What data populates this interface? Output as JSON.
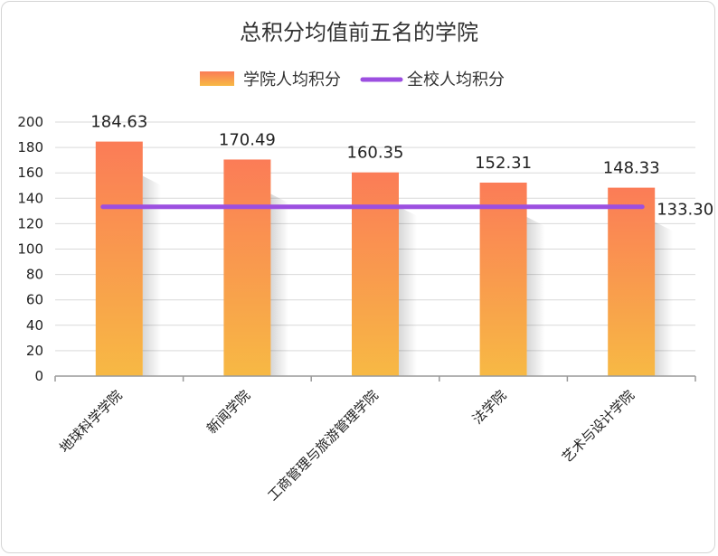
{
  "chart_data": {
    "type": "bar",
    "title": "总积分均值前五名的学院",
    "categories": [
      "地球科学学院",
      "新闻学院",
      "工商管理与旅游管理学院",
      "法学院",
      "艺术与设计学院"
    ],
    "series": [
      {
        "name": "学院人均积分",
        "type": "bar",
        "values": [
          184.63,
          170.49,
          160.35,
          152.31,
          148.33
        ],
        "value_labels": [
          "184.63",
          "170.49",
          "160.35",
          "152.31",
          "148.33"
        ]
      },
      {
        "name": "全校人均积分",
        "type": "line",
        "value": 133.3,
        "value_label": "133.30"
      }
    ],
    "ylim": [
      0,
      200
    ],
    "yticks": [
      "0",
      "20",
      "40",
      "60",
      "80",
      "100",
      "120",
      "140",
      "160",
      "180",
      "200"
    ],
    "grid": true,
    "legend_position": "top-center",
    "colors": {
      "bar_top": "#fb7c57",
      "bar_bottom": "#f7b944",
      "line": "#9c4fe0",
      "grid": "#d9d9d9",
      "axis": "#999999"
    }
  }
}
